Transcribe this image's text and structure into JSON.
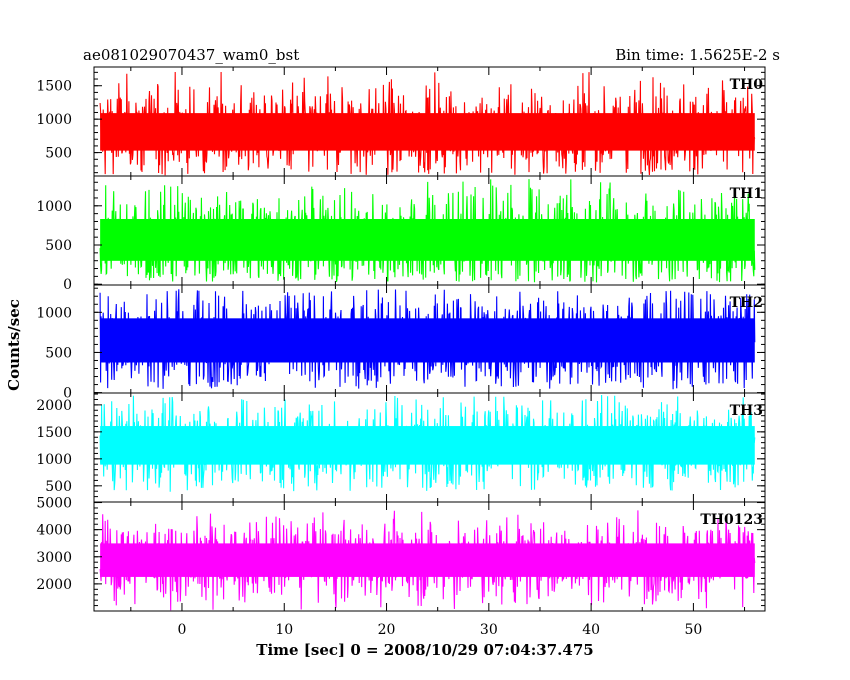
{
  "header": {
    "title": "ae081029070437_wam0_bst",
    "bin_time": "Bin time: 1.5625E-2 s"
  },
  "chart_data": {
    "type": "line",
    "xlabel": "Time [sec] 0 = 2008/10/29 07:04:37.475",
    "ylabel": "Counts/sec",
    "xlim": [
      -8.6,
      57.0
    ],
    "data_range": [
      -8.0,
      56.0
    ],
    "x_ticks": [
      0,
      10,
      20,
      30,
      40,
      50
    ],
    "x_tick_labels": [
      "0",
      "10",
      "20",
      "30",
      "40",
      "50"
    ],
    "bin_time_s": 0.015625,
    "grid": false,
    "panels": [
      {
        "name": "TH0",
        "color": "#ff0000",
        "ylim": [
          150,
          1780
        ],
        "y_ticks": [
          500,
          1000,
          1500
        ],
        "y_tick_labels": [
          "500",
          "1000",
          "1500"
        ],
        "mean": 790,
        "typical_low": 300,
        "typical_high": 1320,
        "min": 160,
        "max": 1720
      },
      {
        "name": "TH1",
        "color": "#00ff00",
        "ylim": [
          -10,
          1380
        ],
        "y_ticks": [
          0,
          500,
          1000
        ],
        "y_tick_labels": [
          "0",
          "500",
          "1000"
        ],
        "mean": 540,
        "typical_low": 80,
        "typical_high": 1050,
        "min": 20,
        "max": 1350
      },
      {
        "name": "TH2",
        "color": "#0000ff",
        "ylim": [
          -5,
          1340
        ],
        "y_ticks": [
          0,
          500,
          1000
        ],
        "y_tick_labels": [
          "0",
          "500",
          "1000"
        ],
        "mean": 650,
        "typical_low": 150,
        "typical_high": 1150,
        "min": 40,
        "max": 1290
      },
      {
        "name": "TH3",
        "color": "#00ffff",
        "ylim": [
          200,
          2220
        ],
        "y_ticks": [
          500,
          1000,
          1500,
          2000
        ],
        "y_tick_labels": [
          "500",
          "1000",
          "1500",
          "2000"
        ],
        "mean": 1220,
        "typical_low": 600,
        "typical_high": 1900,
        "min": 380,
        "max": 2200
      },
      {
        "name": "TH0123",
        "color": "#ff00ff",
        "ylim": [
          1000,
          5020
        ],
        "y_ticks": [
          2000,
          3000,
          4000,
          5000
        ],
        "y_tick_labels": [
          "2000",
          "3000",
          "4000",
          "5000"
        ],
        "mean": 2850,
        "typical_low": 1750,
        "typical_high": 4000,
        "min": 1000,
        "max": 4750
      }
    ]
  }
}
